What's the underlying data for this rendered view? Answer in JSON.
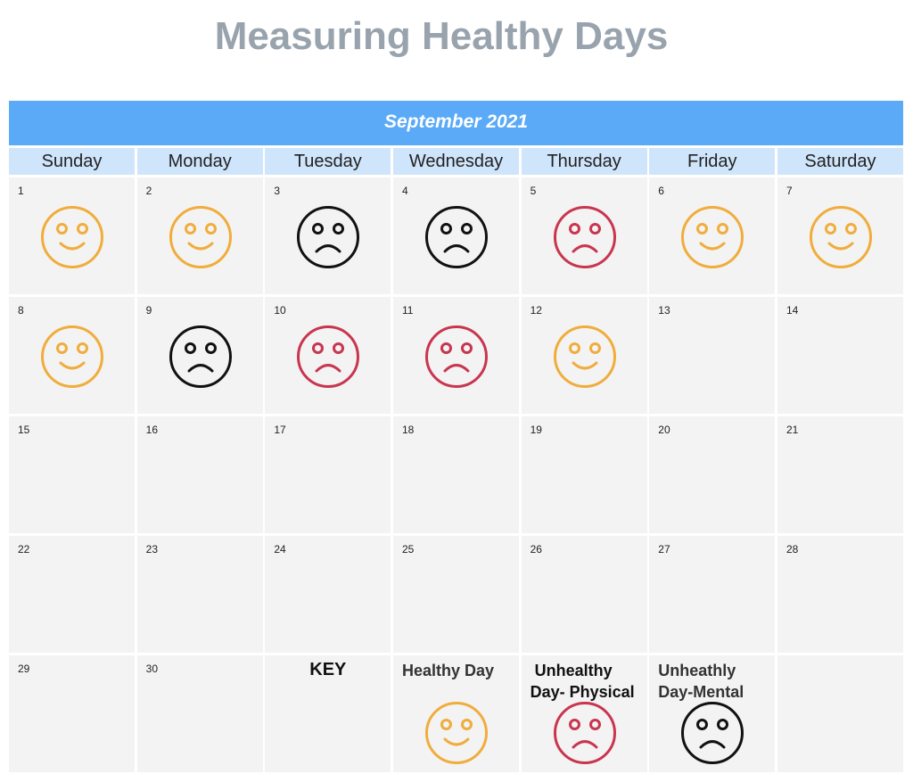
{
  "title": "Measuring Healthy Days",
  "month": "September 2021",
  "weekdays": [
    "Sunday",
    "Monday",
    "Tuesday",
    "Wednesday",
    "Thursday",
    "Friday",
    "Saturday"
  ],
  "colors": {
    "healthy": "#f0ad3c",
    "physical": "#c9354f",
    "mental": "#111111",
    "banner": "#5aaaf7",
    "weekday_bg": "#cfe5fb",
    "cell_bg": "#f3f3f3",
    "title": "#98a3ad"
  },
  "weeks": [
    [
      {
        "day": "1",
        "mood": "healthy"
      },
      {
        "day": "2",
        "mood": "healthy"
      },
      {
        "day": "3",
        "mood": "mental"
      },
      {
        "day": "4",
        "mood": "mental"
      },
      {
        "day": "5",
        "mood": "physical"
      },
      {
        "day": "6",
        "mood": "healthy"
      },
      {
        "day": "7",
        "mood": "healthy"
      }
    ],
    [
      {
        "day": "8",
        "mood": "healthy"
      },
      {
        "day": "9",
        "mood": "mental"
      },
      {
        "day": "10",
        "mood": "physical"
      },
      {
        "day": "11",
        "mood": "physical"
      },
      {
        "day": "12",
        "mood": "healthy"
      },
      {
        "day": "13",
        "mood": null
      },
      {
        "day": "14",
        "mood": null
      }
    ],
    [
      {
        "day": "15",
        "mood": null
      },
      {
        "day": "16",
        "mood": null
      },
      {
        "day": "17",
        "mood": null
      },
      {
        "day": "18",
        "mood": null
      },
      {
        "day": "19",
        "mood": null
      },
      {
        "day": "20",
        "mood": null
      },
      {
        "day": "21",
        "mood": null
      }
    ],
    [
      {
        "day": "22",
        "mood": null
      },
      {
        "day": "23",
        "mood": null
      },
      {
        "day": "24",
        "mood": null
      },
      {
        "day": "25",
        "mood": null
      },
      {
        "day": "26",
        "mood": null
      },
      {
        "day": "27",
        "mood": null
      },
      {
        "day": "28",
        "mood": null
      }
    ],
    [
      {
        "day": "29",
        "mood": null
      },
      {
        "day": "30",
        "mood": null
      }
    ]
  ],
  "key": {
    "title": "KEY",
    "items": [
      {
        "label": "Healthy Day",
        "mood": "healthy",
        "icon": "happy-face-icon"
      },
      {
        "label": "Unhealthy Day- Physical",
        "line1": "Unhealthy",
        "line2": "Day- Physical",
        "mood": "physical",
        "icon": "sad-face-icon"
      },
      {
        "label": "Unheathly Day-Mental",
        "line1": "Unheathly",
        "line2": "Day-Mental",
        "mood": "mental",
        "icon": "sad-face-icon"
      }
    ]
  }
}
